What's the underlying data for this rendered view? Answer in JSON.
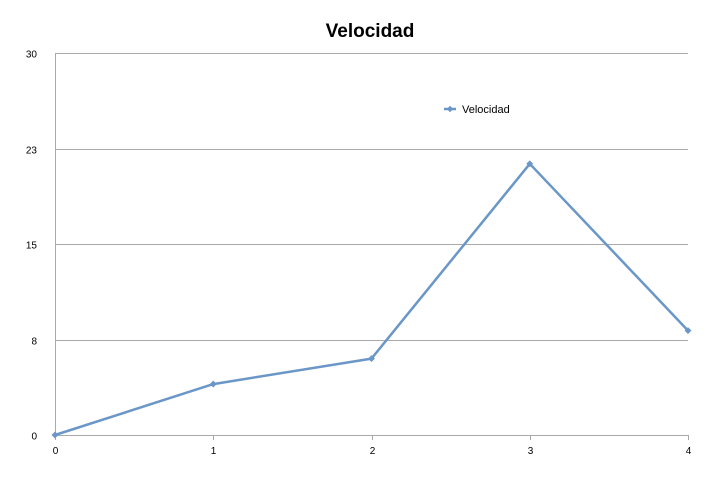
{
  "chart_data": {
    "type": "line",
    "title": "Velocidad",
    "xlabel": "",
    "ylabel": "",
    "x": [
      0,
      1,
      2,
      3,
      4
    ],
    "series": [
      {
        "name": "Velocidad",
        "values": [
          0,
          4,
          6,
          21.3,
          8.2
        ],
        "color": "#6a96c8"
      }
    ],
    "xticks": [
      "0",
      "1",
      "2",
      "3",
      "4"
    ],
    "yticks": [
      {
        "value": 0,
        "label": "0"
      },
      {
        "value": 7.5,
        "label": "8"
      },
      {
        "value": 15,
        "label": "15"
      },
      {
        "value": 22.5,
        "label": "23"
      },
      {
        "value": 30,
        "label": "30"
      }
    ],
    "xlim": [
      0,
      4
    ],
    "ylim": [
      0,
      30
    ],
    "grid": true,
    "legend": "top-right"
  }
}
